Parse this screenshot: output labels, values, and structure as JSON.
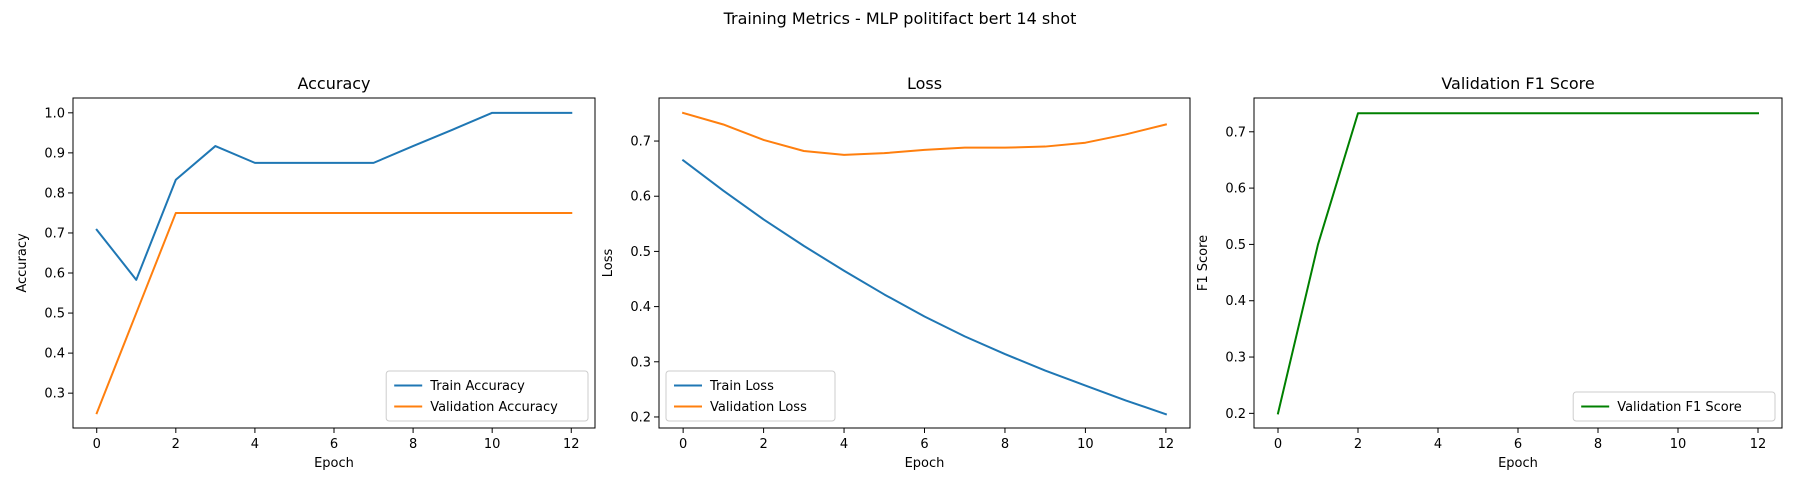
{
  "figure": {
    "suptitle": "Training Metrics - MLP politifact bert 14 shot"
  },
  "chart_data": [
    {
      "type": "line",
      "title": "Accuracy",
      "xlabel": "Epoch",
      "ylabel": "Accuracy",
      "xlim": [
        -0.6,
        12.6
      ],
      "ylim": [
        0.213,
        1.037
      ],
      "xticks": [
        0,
        2,
        4,
        6,
        8,
        10,
        12
      ],
      "yticks": [
        0.3,
        0.4,
        0.5,
        0.6,
        0.7,
        0.8,
        0.9,
        1.0
      ],
      "ytick_labels": [
        "0.3",
        "0.4",
        "0.5",
        "0.6",
        "0.7",
        "0.8",
        "0.9",
        "1.0"
      ],
      "legend_position": "lower-right",
      "grid": false,
      "x": [
        0,
        1,
        2,
        3,
        4,
        5,
        6,
        7,
        8,
        9,
        10,
        11,
        12
      ],
      "series": [
        {
          "name": "Train Accuracy",
          "color": "#1f77b4",
          "values": [
            0.708,
            0.583,
            0.833,
            0.917,
            0.875,
            0.875,
            0.875,
            0.875,
            0.917,
            0.958,
            1.0,
            1.0,
            1.0
          ]
        },
        {
          "name": "Validation Accuracy",
          "color": "#ff7f0e",
          "values": [
            0.25,
            0.5,
            0.75,
            0.75,
            0.75,
            0.75,
            0.75,
            0.75,
            0.75,
            0.75,
            0.75,
            0.75,
            0.75
          ]
        }
      ]
    },
    {
      "type": "line",
      "title": "Loss",
      "xlabel": "Epoch",
      "ylabel": "Loss",
      "xlim": [
        -0.6,
        12.6
      ],
      "ylim": [
        0.18,
        0.778
      ],
      "xticks": [
        0,
        2,
        4,
        6,
        8,
        10,
        12
      ],
      "yticks": [
        0.2,
        0.3,
        0.4,
        0.5,
        0.6,
        0.7
      ],
      "ytick_labels": [
        "0.2",
        "0.3",
        "0.4",
        "0.5",
        "0.6",
        "0.7"
      ],
      "legend_position": "lower-left",
      "grid": false,
      "x": [
        0,
        1,
        2,
        3,
        4,
        5,
        6,
        7,
        8,
        9,
        10,
        11,
        12
      ],
      "series": [
        {
          "name": "Train Loss",
          "color": "#1f77b4",
          "values": [
            0.665,
            0.61,
            0.558,
            0.51,
            0.465,
            0.422,
            0.382,
            0.346,
            0.314,
            0.284,
            0.257,
            0.23,
            0.205
          ]
        },
        {
          "name": "Validation Loss",
          "color": "#ff7f0e",
          "values": [
            0.751,
            0.73,
            0.702,
            0.682,
            0.675,
            0.678,
            0.684,
            0.688,
            0.688,
            0.69,
            0.697,
            0.712,
            0.73
          ]
        }
      ]
    },
    {
      "type": "line",
      "title": "Validation F1 Score",
      "xlabel": "Epoch",
      "ylabel": "F1 Score",
      "xlim": [
        -0.6,
        12.6
      ],
      "ylim": [
        0.174,
        0.76
      ],
      "xticks": [
        0,
        2,
        4,
        6,
        8,
        10,
        12
      ],
      "yticks": [
        0.2,
        0.3,
        0.4,
        0.5,
        0.6,
        0.7
      ],
      "ytick_labels": [
        "0.2",
        "0.3",
        "0.4",
        "0.5",
        "0.6",
        "0.7"
      ],
      "legend_position": "lower-right",
      "grid": false,
      "x": [
        0,
        1,
        2,
        3,
        4,
        5,
        6,
        7,
        8,
        9,
        10,
        11,
        12
      ],
      "series": [
        {
          "name": "Validation F1 Score",
          "color": "#008000",
          "values": [
            0.2,
            0.5,
            0.733,
            0.733,
            0.733,
            0.733,
            0.733,
            0.733,
            0.733,
            0.733,
            0.733,
            0.733,
            0.733
          ]
        }
      ]
    }
  ]
}
